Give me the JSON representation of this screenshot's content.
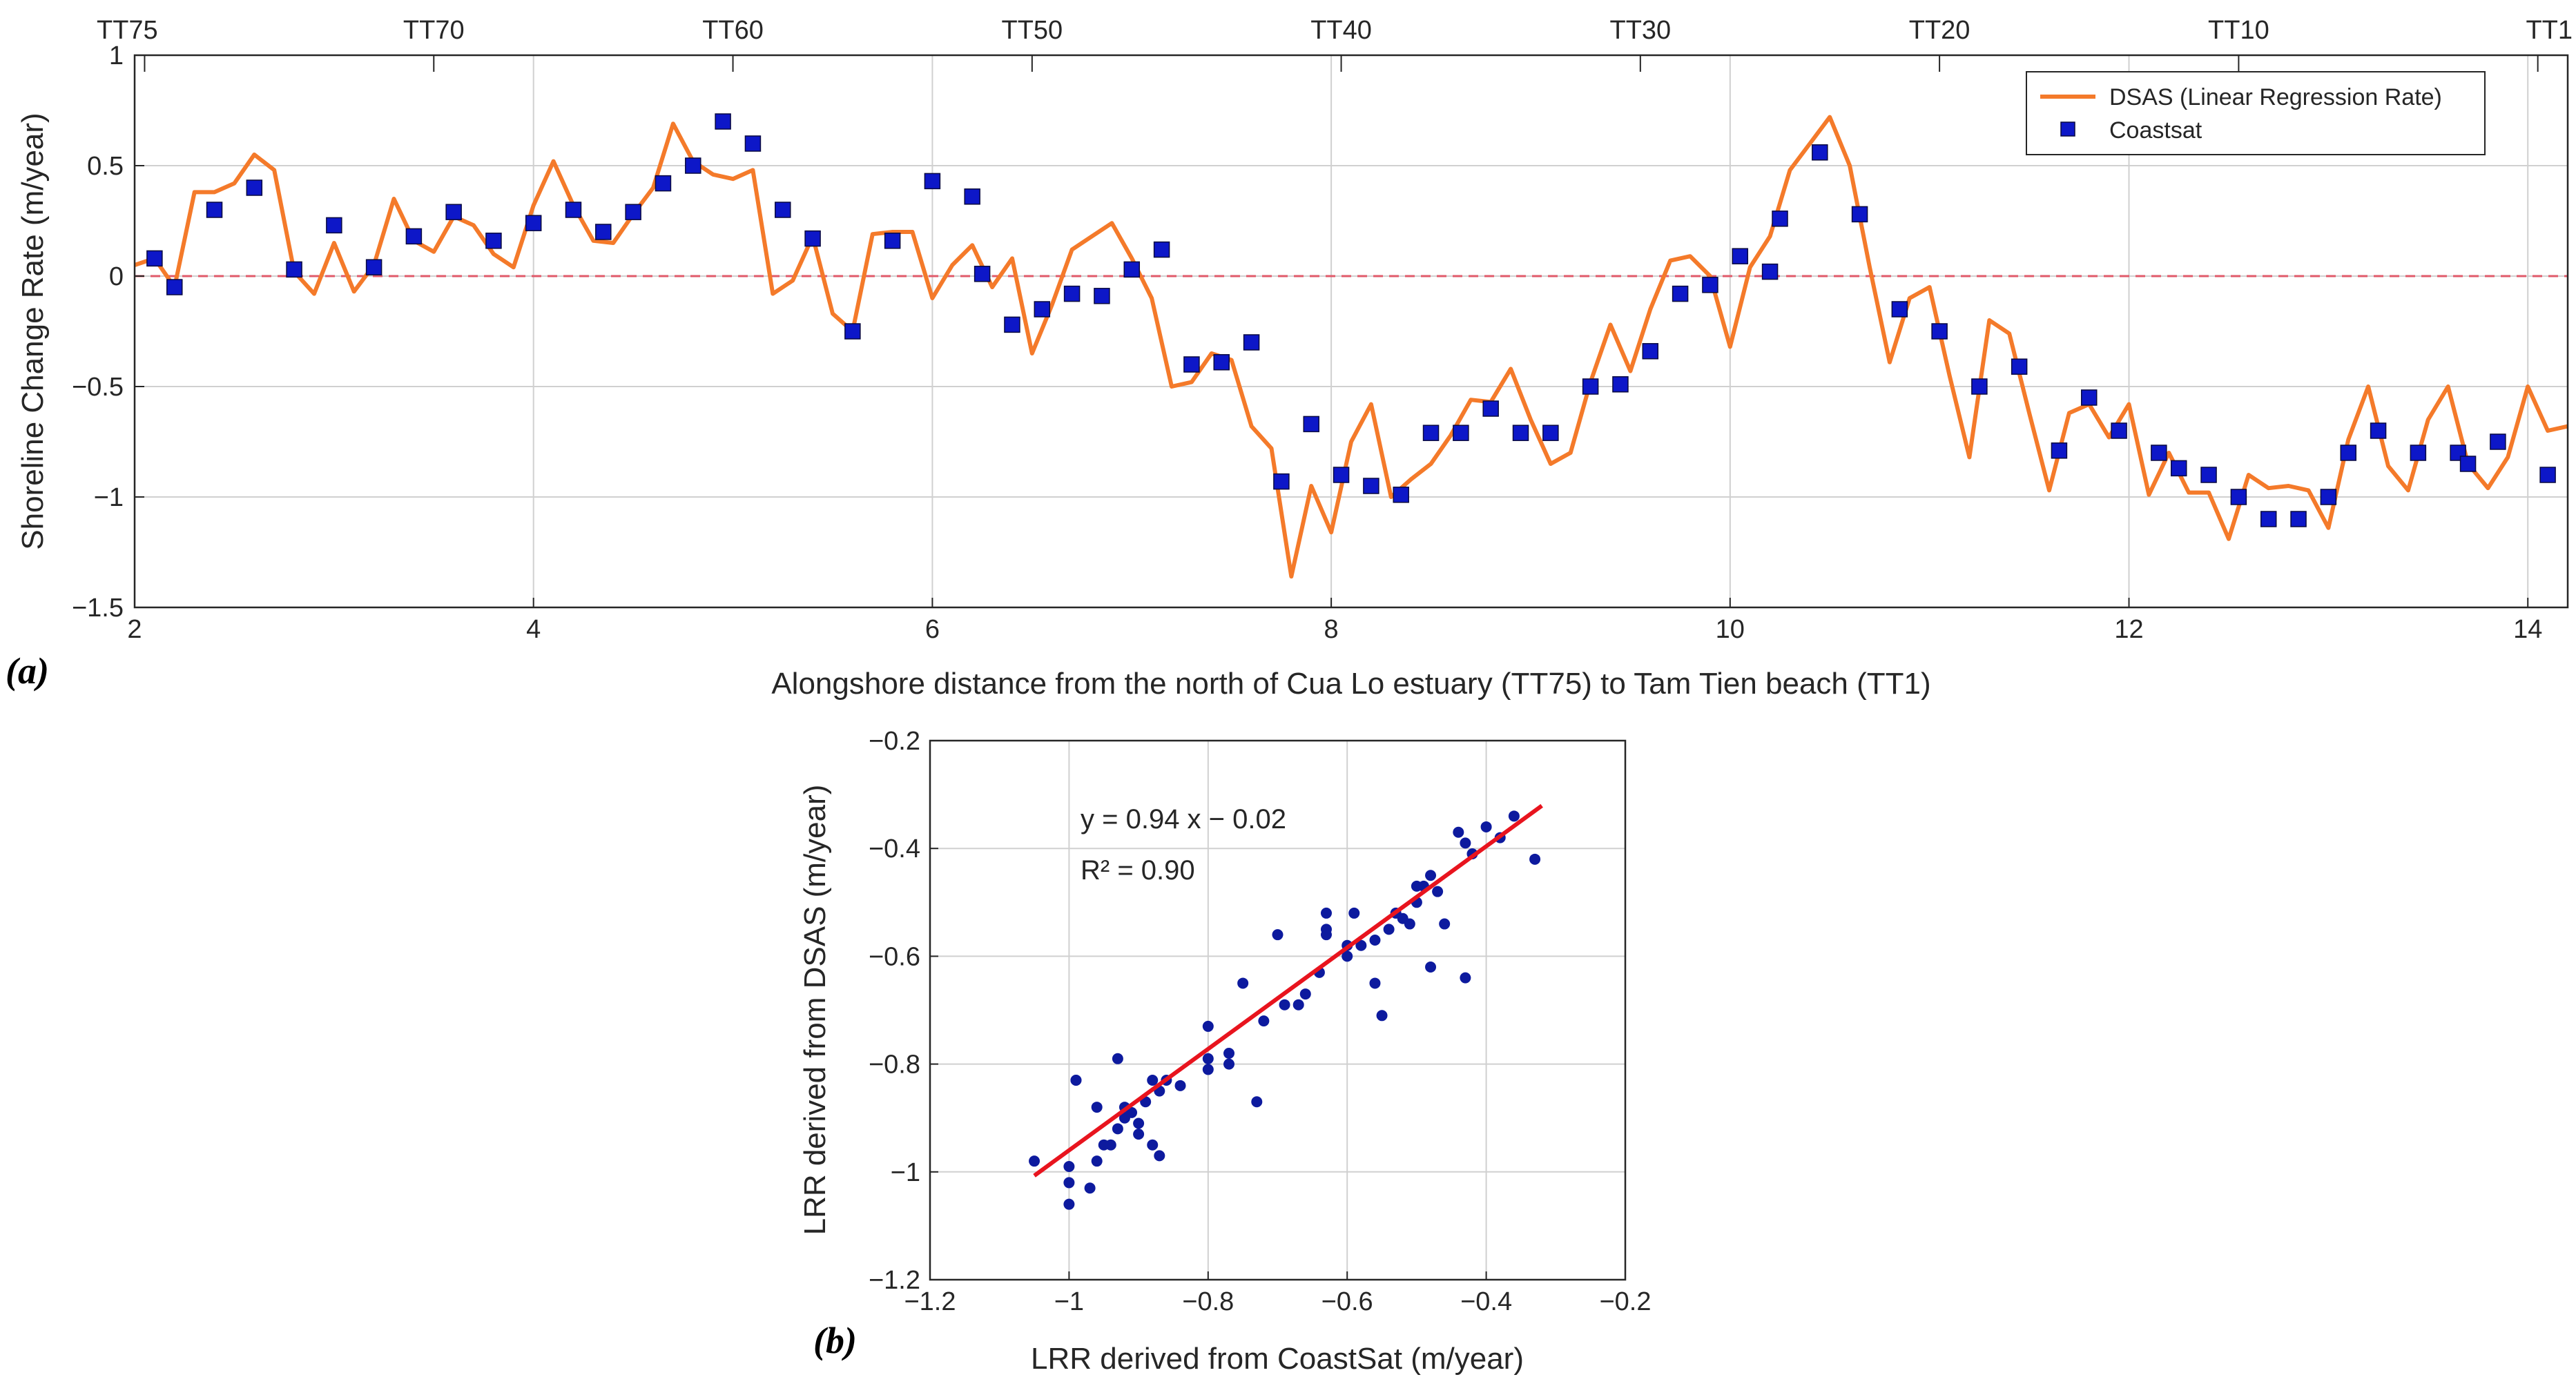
{
  "chart_data": [
    {
      "type": "line",
      "panel_label": "(a)",
      "title": "",
      "xlabel": "Alongshore distance from the north of Cua Lo estuary (TT75) to Tam Tien beach (TT1)",
      "ylabel": "Shoreline Change Rate (m/year)",
      "xlim": [
        2,
        14.2
      ],
      "ylim": [
        -1.5,
        1
      ],
      "xticks": [
        2,
        4,
        6,
        8,
        10,
        12,
        14
      ],
      "yticks": [
        1,
        0.5,
        0,
        -0.5,
        -1,
        -1.5
      ],
      "xtick_labels": [
        "2",
        "4",
        "6",
        "8",
        "10",
        "12",
        "14"
      ],
      "ytick_labels": [
        "1",
        "0.5",
        "0",
        "−0.5",
        "−1",
        "−1.5"
      ],
      "top_axis_labels": [
        "TT75",
        "TT70",
        "TT60",
        "TT50",
        "TT40",
        "TT30",
        "TT20",
        "TT10",
        "TT1"
      ],
      "top_axis_positions": [
        2.05,
        3.5,
        5.0,
        6.5,
        8.05,
        9.55,
        11.05,
        12.55,
        14.05
      ],
      "grid": true,
      "legend_position": "top-right",
      "reference_line": {
        "y": 0,
        "style": "dashed",
        "color": "#e05a6a"
      },
      "series": [
        {
          "name": "DSAS (Linear Regression Rate)",
          "type": "line",
          "color": "#f47a2a",
          "x": [
            2.0,
            2.1,
            2.2,
            2.3,
            2.4,
            2.5,
            2.6,
            2.7,
            2.8,
            2.9,
            3.0,
            3.1,
            3.2,
            3.3,
            3.4,
            3.5,
            3.6,
            3.7,
            3.8,
            3.9,
            4.0,
            4.1,
            4.2,
            4.3,
            4.4,
            4.5,
            4.6,
            4.7,
            4.8,
            4.9,
            5.0,
            5.1,
            5.2,
            5.3,
            5.4,
            5.5,
            5.6,
            5.7,
            5.8,
            5.9,
            6.0,
            6.1,
            6.2,
            6.3,
            6.4,
            6.5,
            6.6,
            6.7,
            6.8,
            6.9,
            7.0,
            7.1,
            7.2,
            7.3,
            7.4,
            7.5,
            7.6,
            7.7,
            7.8,
            7.9,
            8.0,
            8.1,
            8.2,
            8.3,
            8.4,
            8.5,
            8.6,
            8.7,
            8.8,
            8.9,
            9.0,
            9.1,
            9.2,
            9.3,
            9.4,
            9.5,
            9.6,
            9.7,
            9.8,
            9.9,
            10.0,
            10.1,
            10.2,
            10.3,
            10.4,
            10.5,
            10.6,
            10.7,
            10.8,
            10.9,
            11.0,
            11.1,
            11.2,
            11.3,
            11.4,
            11.5,
            11.6,
            11.7,
            11.8,
            11.9,
            12.0,
            12.1,
            12.2,
            12.3,
            12.4,
            12.5,
            12.6,
            12.7,
            12.8,
            12.9,
            13.0,
            13.1,
            13.2,
            13.3,
            13.4,
            13.5,
            13.6,
            13.7,
            13.8,
            13.9,
            14.0,
            14.1,
            14.2
          ],
          "values": [
            0.05,
            0.08,
            -0.05,
            0.38,
            0.38,
            0.42,
            0.55,
            0.48,
            0.02,
            -0.08,
            0.15,
            -0.07,
            0.05,
            0.35,
            0.16,
            0.11,
            0.27,
            0.23,
            0.1,
            0.04,
            0.32,
            0.52,
            0.32,
            0.16,
            0.15,
            0.28,
            0.4,
            0.69,
            0.52,
            0.46,
            0.44,
            0.48,
            -0.08,
            -0.02,
            0.18,
            -0.17,
            -0.25,
            0.19,
            0.2,
            0.2,
            -0.1,
            0.05,
            0.14,
            -0.05,
            0.08,
            -0.35,
            -0.13,
            0.12,
            0.18,
            0.24,
            0.08,
            -0.1,
            -0.5,
            -0.48,
            -0.35,
            -0.38,
            -0.68,
            -0.78,
            -1.36,
            -0.95,
            -1.16,
            -0.75,
            -0.58,
            -1.0,
            -0.92,
            -0.85,
            -0.72,
            -0.56,
            -0.57,
            -0.42,
            -0.65,
            -0.85,
            -0.8,
            -0.48,
            -0.22,
            -0.43,
            -0.15,
            0.07,
            0.09,
            0.0,
            -0.32,
            0.04,
            0.18,
            0.48,
            0.6,
            0.72,
            0.5,
            0.04,
            -0.39,
            -0.1,
            -0.05,
            -0.45,
            -0.82,
            -0.2,
            -0.26,
            -0.62,
            -0.97,
            -0.62,
            -0.58,
            -0.73,
            -0.58,
            -0.99,
            -0.8,
            -0.98,
            -0.98,
            -1.19,
            -0.9,
            -0.96,
            -0.95,
            -0.97,
            -1.14,
            -0.74,
            -0.5,
            -0.86,
            -0.97,
            -0.65,
            -0.5,
            -0.85,
            -0.96,
            -0.82,
            -0.5,
            -0.7,
            -0.68
          ]
        },
        {
          "name": "Coastsat",
          "type": "scatter",
          "marker": "square",
          "color": "#0d17c8",
          "x": [
            2.1,
            2.2,
            2.4,
            2.6,
            2.8,
            3.0,
            3.2,
            3.4,
            3.6,
            3.8,
            4.0,
            4.2,
            4.35,
            4.5,
            4.65,
            4.8,
            4.95,
            5.1,
            5.25,
            5.4,
            5.6,
            5.8,
            6.0,
            6.2,
            6.25,
            6.4,
            6.55,
            6.7,
            6.85,
            7.0,
            7.15,
            7.3,
            7.45,
            7.6,
            7.75,
            7.9,
            8.05,
            8.2,
            8.35,
            8.5,
            8.65,
            8.8,
            8.95,
            9.1,
            9.3,
            9.45,
            9.6,
            9.75,
            9.9,
            10.05,
            10.2,
            10.25,
            10.45,
            10.65,
            10.85,
            11.05,
            11.25,
            11.45,
            11.65,
            11.8,
            11.95,
            12.15,
            12.25,
            12.4,
            12.55,
            12.7,
            12.85,
            13.0,
            13.1,
            13.25,
            13.45,
            13.65,
            13.7,
            13.85,
            14.1
          ],
          "values": [
            0.08,
            -0.05,
            0.3,
            0.4,
            0.03,
            0.23,
            0.04,
            0.18,
            0.29,
            0.16,
            0.24,
            0.3,
            0.2,
            0.29,
            0.42,
            0.5,
            0.7,
            0.6,
            0.3,
            0.17,
            -0.25,
            0.16,
            0.43,
            0.36,
            0.01,
            -0.22,
            -0.15,
            -0.08,
            -0.09,
            0.03,
            0.12,
            -0.4,
            -0.39,
            -0.3,
            -0.93,
            -0.67,
            -0.9,
            -0.95,
            -0.99,
            -0.71,
            -0.71,
            -0.6,
            -0.71,
            -0.71,
            -0.5,
            -0.49,
            -0.34,
            -0.08,
            -0.04,
            0.09,
            0.02,
            0.26,
            0.56,
            0.28,
            -0.15,
            -0.25,
            -0.5,
            -0.41,
            -0.79,
            -0.55,
            -0.7,
            -0.8,
            -0.87,
            -0.9,
            -1.0,
            -1.1,
            -1.1,
            -1.0,
            -0.8,
            -0.7,
            -0.8,
            -0.8,
            -0.85,
            -0.75,
            -0.9
          ]
        }
      ]
    },
    {
      "type": "scatter",
      "panel_label": "(b)",
      "title": "",
      "xlabel": "LRR derived from CoastSat (m/year)",
      "ylabel": "LRR derived from DSAS (m/year)",
      "xlim": [
        -1.2,
        -0.2
      ],
      "ylim": [
        -1.2,
        -0.2
      ],
      "xticks": [
        -1.2,
        -1,
        -0.8,
        -0.6,
        -0.4,
        -0.2
      ],
      "yticks": [
        -0.2,
        -0.4,
        -0.6,
        -0.8,
        -1,
        -1.2
      ],
      "xtick_labels": [
        "−1.2",
        "−1",
        "−0.8",
        "−0.6",
        "−0.4",
        "−0.2"
      ],
      "ytick_labels": [
        "−0.2",
        "−0.4",
        "−0.6",
        "−0.8",
        "−1",
        "−1.2"
      ],
      "grid": true,
      "annotations": [
        "y = 0.94 x − 0.02",
        "R² = 0.90"
      ],
      "fit_line": {
        "slope": 0.94,
        "intercept": -0.02,
        "x_range": [
          -1.05,
          -0.32
        ],
        "color": "#e8141e"
      },
      "series": [
        {
          "type": "scatter",
          "marker": "circle",
          "color": "#0d1a9e",
          "x": [
            -1.05,
            -1.0,
            -1.0,
            -1.0,
            -0.99,
            -0.97,
            -0.96,
            -0.96,
            -0.95,
            -0.94,
            -0.93,
            -0.93,
            -0.92,
            -0.92,
            -0.91,
            -0.9,
            -0.9,
            -0.89,
            -0.88,
            -0.88,
            -0.87,
            -0.87,
            -0.86,
            -0.84,
            -0.8,
            -0.8,
            -0.8,
            -0.77,
            -0.77,
            -0.75,
            -0.73,
            -0.7,
            -0.69,
            -0.67,
            -0.66,
            -0.64,
            -0.63,
            -0.63,
            -0.6,
            -0.59,
            -0.58,
            -0.56,
            -0.55,
            -0.54,
            -0.53,
            -0.52,
            -0.51,
            -0.5,
            -0.5,
            -0.49,
            -0.48,
            -0.47,
            -0.46,
            -0.44,
            -0.43,
            -0.42,
            -0.4,
            -0.38,
            -0.36,
            -0.33,
            -0.63,
            -0.6,
            -0.56,
            -0.48,
            -0.43,
            -0.72,
            -0.99
          ],
          "y": [
            -0.98,
            -1.06,
            -1.02,
            -0.99,
            -0.83,
            -1.03,
            -0.98,
            -0.88,
            -0.95,
            -0.95,
            -0.92,
            -0.79,
            -0.9,
            -0.88,
            -0.89,
            -0.91,
            -0.93,
            -0.87,
            -0.83,
            -0.95,
            -0.97,
            -0.85,
            -0.83,
            -0.84,
            -0.73,
            -0.79,
            -0.81,
            -0.78,
            -0.8,
            -0.65,
            -0.87,
            -0.56,
            -0.69,
            -0.69,
            -0.67,
            -0.63,
            -0.52,
            -0.56,
            -0.58,
            -0.52,
            -0.58,
            -0.57,
            -0.71,
            -0.55,
            -0.52,
            -0.53,
            -0.54,
            -0.47,
            -0.5,
            -0.47,
            -0.45,
            -0.48,
            -0.54,
            -0.37,
            -0.39,
            -0.41,
            -0.36,
            -0.38,
            -0.34,
            -0.42,
            -0.55,
            -0.6,
            -0.65,
            -0.62,
            -0.64,
            -0.72,
            -0.83
          ]
        }
      ]
    }
  ]
}
